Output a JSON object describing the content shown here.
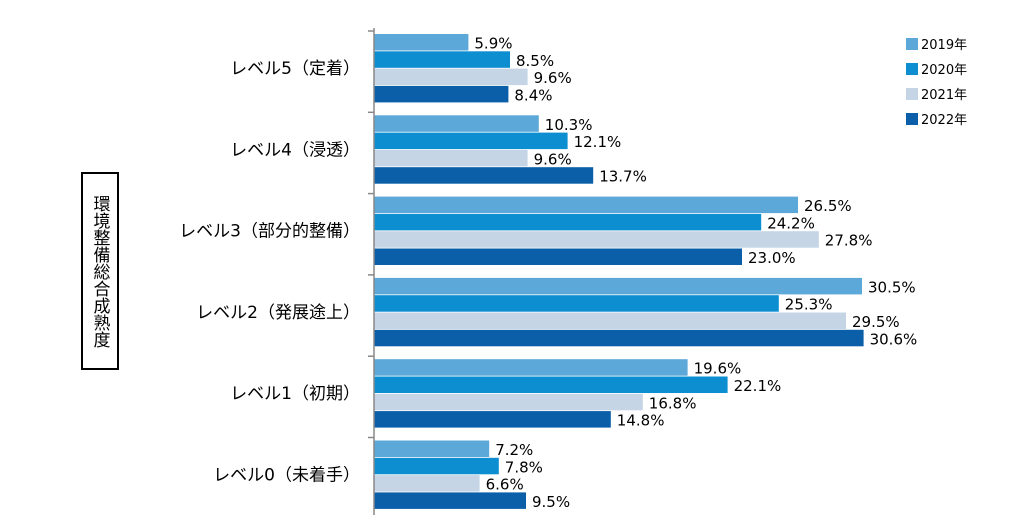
{
  "chart_data": {
    "type": "bar",
    "orientation": "horizontal",
    "ylabel": "環境整備総合成熟度",
    "xlabel": "",
    "categories": [
      "レベル5（定着）",
      "レベル4（浸透）",
      "レベル3（部分的整備）",
      "レベル2（発展途上）",
      "レベル1（初期）",
      "レベル0（未着手）"
    ],
    "series": [
      {
        "name": "2019年",
        "color": "#5ba8d9",
        "values": [
          5.9,
          10.3,
          26.5,
          30.5,
          19.6,
          7.2
        ],
        "labels": [
          "5.9%",
          "10.3%",
          "26.5%",
          "30.5%",
          "19.6%",
          "7.2%"
        ]
      },
      {
        "name": "2020年",
        "color": "#0d8ed0",
        "values": [
          8.5,
          12.1,
          24.2,
          25.3,
          22.1,
          7.8
        ],
        "labels": [
          "8.5%",
          "12.1%",
          "24.2%",
          "25.3%",
          "22.1%",
          "7.8%"
        ]
      },
      {
        "name": "2021年",
        "color": "#c5d5e6",
        "values": [
          9.6,
          9.6,
          27.8,
          29.5,
          16.8,
          6.6
        ],
        "labels": [
          "9.6%",
          "9.6%",
          "27.8%",
          "29.5%",
          "16.8%",
          "6.6%"
        ]
      },
      {
        "name": "2022年",
        "color": "#0a5fa8",
        "values": [
          8.4,
          13.7,
          23.0,
          30.6,
          14.8,
          9.5
        ],
        "labels": [
          "8.4%",
          "13.7%",
          "23.0%",
          "30.6%",
          "14.8%",
          "9.5%"
        ]
      }
    ],
    "xlim": [
      0,
      35
    ],
    "grid": false,
    "legend_position": "top-right"
  }
}
